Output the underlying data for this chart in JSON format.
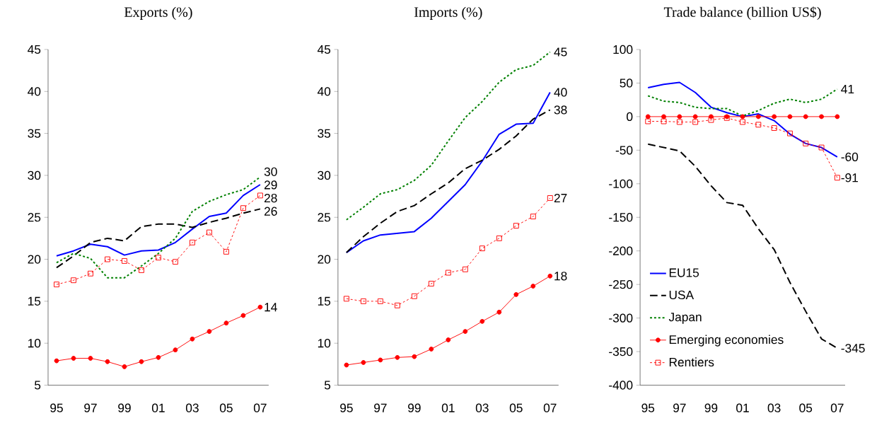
{
  "chart_data": [
    {
      "type": "line",
      "title": "Exports (%)",
      "categories": [
        "95",
        null,
        "97",
        null,
        "99",
        null,
        "01",
        null,
        "03",
        null,
        "05",
        null,
        "07"
      ],
      "ylim": [
        5,
        45
      ],
      "yticks": [
        5,
        10,
        15,
        20,
        25,
        30,
        35,
        40,
        45
      ],
      "grid": false,
      "legend": false,
      "series": [
        {
          "color": "#0000ff",
          "line_style": "solid",
          "marker": "none",
          "values": [
            20.4,
            21.0,
            21.8,
            21.5,
            20.5,
            21.0,
            21.1,
            22.0,
            23.6,
            25.1,
            25.5,
            27.6,
            28.9
          ],
          "value_labels": [
            null,
            null,
            null,
            null,
            null,
            null,
            null,
            null,
            null,
            null,
            null,
            null,
            "29"
          ]
        },
        {
          "color": "#000000",
          "line_style": "dashed",
          "marker": "none",
          "values": [
            19.0,
            20.4,
            22.0,
            22.5,
            22.2,
            23.9,
            24.2,
            24.2,
            23.8,
            24.4,
            24.9,
            25.5,
            26.0
          ],
          "value_labels": [
            null,
            null,
            null,
            null,
            null,
            null,
            null,
            null,
            null,
            null,
            null,
            null,
            "26"
          ]
        },
        {
          "color": "#008000",
          "line_style": "dotted",
          "marker": "none",
          "values": [
            19.6,
            20.7,
            20.1,
            17.8,
            17.8,
            19.2,
            20.7,
            22.5,
            25.7,
            26.9,
            27.7,
            28.3,
            29.8
          ],
          "value_labels": [
            null,
            null,
            null,
            null,
            null,
            null,
            null,
            null,
            null,
            null,
            null,
            null,
            "30"
          ]
        },
        {
          "color": "#ff0000",
          "line_style": "solid",
          "marker": "circle",
          "values": [
            7.9,
            8.2,
            8.2,
            7.8,
            7.2,
            7.8,
            8.3,
            9.2,
            10.5,
            11.4,
            12.4,
            13.3,
            14.3
          ],
          "value_labels": [
            null,
            null,
            null,
            null,
            null,
            null,
            null,
            null,
            null,
            null,
            null,
            null,
            "14"
          ]
        },
        {
          "color": "#ff0000",
          "line_style": "dotted",
          "marker": "square",
          "values": [
            17.0,
            17.5,
            18.3,
            20.0,
            19.8,
            18.7,
            20.2,
            19.7,
            22.0,
            23.2,
            20.9,
            26.1,
            27.6
          ],
          "value_labels": [
            null,
            null,
            null,
            null,
            null,
            null,
            null,
            null,
            null,
            null,
            null,
            null,
            "28"
          ]
        }
      ]
    },
    {
      "type": "line",
      "title": "Imports (%)",
      "categories": [
        "95",
        null,
        "97",
        null,
        "99",
        null,
        "01",
        null,
        "03",
        null,
        "05",
        null,
        "07"
      ],
      "ylim": [
        5,
        45
      ],
      "yticks": [
        5,
        10,
        15,
        20,
        25,
        30,
        35,
        40,
        45
      ],
      "grid": false,
      "legend": false,
      "series": [
        {
          "color": "#0000ff",
          "line_style": "solid",
          "marker": "none",
          "values": [
            20.8,
            22.2,
            22.9,
            23.1,
            23.3,
            24.9,
            26.9,
            28.9,
            31.7,
            34.9,
            36.1,
            36.2,
            39.9
          ],
          "value_labels": [
            null,
            null,
            null,
            null,
            null,
            null,
            null,
            null,
            null,
            null,
            null,
            null,
            "40"
          ]
        },
        {
          "color": "#000000",
          "line_style": "dashed",
          "marker": "none",
          "values": [
            20.8,
            22.7,
            24.3,
            25.7,
            26.4,
            27.8,
            29.1,
            30.8,
            31.8,
            33.1,
            34.7,
            36.7,
            37.8
          ],
          "value_labels": [
            null,
            null,
            null,
            null,
            null,
            null,
            null,
            null,
            null,
            null,
            null,
            null,
            "38"
          ]
        },
        {
          "color": "#008000",
          "line_style": "dotted",
          "marker": "none",
          "values": [
            24.7,
            26.2,
            27.8,
            28.3,
            29.4,
            31.2,
            34.1,
            36.9,
            38.8,
            41.1,
            42.6,
            43.1,
            44.7
          ],
          "value_labels": [
            null,
            null,
            null,
            null,
            null,
            null,
            null,
            null,
            null,
            null,
            null,
            null,
            "45"
          ]
        },
        {
          "color": "#ff0000",
          "line_style": "solid",
          "marker": "circle",
          "values": [
            7.4,
            7.7,
            8.0,
            8.3,
            8.4,
            9.3,
            10.4,
            11.4,
            12.6,
            13.7,
            15.8,
            16.8,
            18.0
          ],
          "value_labels": [
            null,
            null,
            null,
            null,
            null,
            null,
            null,
            null,
            null,
            null,
            null,
            null,
            "18"
          ]
        },
        {
          "color": "#ff0000",
          "line_style": "dotted",
          "marker": "square",
          "values": [
            15.3,
            15.0,
            15.0,
            14.5,
            15.6,
            17.1,
            18.4,
            18.8,
            21.3,
            22.5,
            24.0,
            25.1,
            27.3
          ],
          "value_labels": [
            null,
            null,
            null,
            null,
            null,
            null,
            null,
            null,
            null,
            null,
            null,
            null,
            "27"
          ]
        }
      ]
    },
    {
      "type": "line",
      "title": "Trade balance (billion US$)",
      "categories": [
        "95",
        null,
        "97",
        null,
        "99",
        null,
        "01",
        null,
        "03",
        null,
        "05",
        null,
        "07"
      ],
      "ylim": [
        -400,
        100
      ],
      "yticks": [
        -400,
        -350,
        -300,
        -250,
        -200,
        -150,
        -100,
        -50,
        0,
        50,
        100
      ],
      "grid": false,
      "legend": "bottom left",
      "series": [
        {
          "name": "EU15",
          "color": "#0000ff",
          "line_style": "solid",
          "marker": "none",
          "values": [
            43,
            48,
            51,
            36,
            14,
            6,
            0,
            4,
            -6,
            -26,
            -40,
            -46,
            -60
          ],
          "value_labels": [
            null,
            null,
            null,
            null,
            null,
            null,
            null,
            null,
            null,
            null,
            null,
            null,
            "-60"
          ]
        },
        {
          "name": "USA",
          "color": "#000000",
          "line_style": "dashed",
          "marker": "none",
          "values": [
            -41,
            -46,
            -51,
            -74,
            -103,
            -128,
            -132,
            -167,
            -198,
            -247,
            -290,
            -331,
            -345
          ],
          "value_labels": [
            null,
            null,
            null,
            null,
            null,
            null,
            null,
            null,
            null,
            null,
            null,
            null,
            "-345"
          ]
        },
        {
          "name": "Japan",
          "color": "#008000",
          "line_style": "dotted",
          "marker": "none",
          "values": [
            31,
            23,
            21,
            14,
            12,
            12,
            1,
            9,
            20,
            26,
            21,
            26,
            41
          ],
          "value_labels": [
            null,
            null,
            null,
            null,
            null,
            null,
            null,
            null,
            null,
            null,
            null,
            null,
            "41"
          ]
        },
        {
          "name": "Emerging economies",
          "color": "#ff0000",
          "line_style": "solid",
          "marker": "circle",
          "values": [
            0,
            0,
            0,
            0,
            0,
            0,
            0,
            0,
            0,
            0,
            0,
            0,
            0
          ]
        },
        {
          "name": "Rentiers",
          "color": "#ff0000",
          "line_style": "dotted",
          "marker": "square",
          "values": [
            -7,
            -7,
            -8,
            -8,
            -5,
            -2,
            -8,
            -12,
            -17,
            -25,
            -40,
            -46,
            -91
          ],
          "value_labels": [
            null,
            null,
            null,
            null,
            null,
            null,
            null,
            null,
            null,
            null,
            null,
            null,
            "-91"
          ]
        }
      ]
    }
  ]
}
